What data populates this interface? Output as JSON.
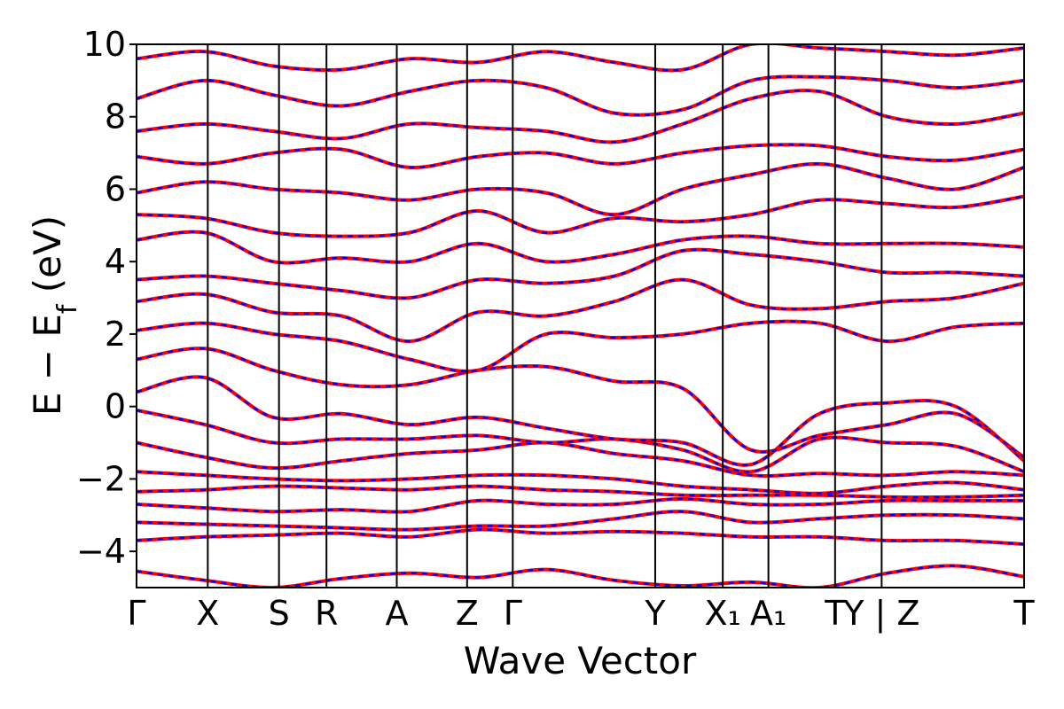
{
  "chart_data": {
    "type": "line",
    "title": "",
    "xlabel": "Wave Vector",
    "ylabel": "E − E_f (eV)",
    "ylabel_main": "E − E",
    "ylabel_sub": "f",
    "ylabel_tail": " (eV)",
    "ylim": [
      -5,
      10
    ],
    "yticks": [
      -4,
      -2,
      0,
      2,
      4,
      6,
      8,
      10
    ],
    "ytick_labels": [
      "−4",
      "−2",
      "0",
      "2",
      "4",
      "6",
      "8",
      "10"
    ],
    "grid": false,
    "legend": "none",
    "kpath": {
      "positions": [
        0,
        0.78,
        1.56,
        2.08,
        2.85,
        3.62,
        4.12,
        5.68,
        6.42,
        6.92,
        7.65,
        8.16,
        9.72
      ],
      "labels": [
        "Γ",
        "X",
        "S",
        "R",
        "A",
        "Z",
        "Γ",
        "Y",
        "X₁",
        "A₁",
        "T",
        "Y | Z",
        "T"
      ]
    },
    "series": [
      {
        "color": "#ff0000",
        "style": "solid",
        "values": [
          [
            -4.55,
            -4.8,
            -5.0,
            -4.75,
            -4.6,
            -4.72,
            -4.5,
            -4.8,
            -4.95,
            -4.85,
            -5.0,
            -4.6,
            -4.4,
            -4.7
          ],
          [
            -3.7,
            -3.6,
            -3.55,
            -3.5,
            -3.6,
            -3.4,
            -3.5,
            -3.45,
            -3.5,
            -3.6,
            -3.6,
            -3.7,
            -3.7,
            -3.8
          ],
          [
            -3.2,
            -3.25,
            -3.3,
            -3.35,
            -3.4,
            -3.3,
            -3.3,
            -3.1,
            -2.9,
            -3.2,
            -3.1,
            -3.0,
            -3.0,
            -3.1
          ],
          [
            -2.7,
            -2.8,
            -2.9,
            -2.85,
            -2.9,
            -2.6,
            -2.7,
            -2.7,
            -2.55,
            -2.7,
            -2.7,
            -2.6,
            -2.6,
            -2.6
          ],
          [
            -2.35,
            -2.3,
            -2.2,
            -2.25,
            -2.3,
            -2.2,
            -2.3,
            -2.35,
            -2.45,
            -2.45,
            -2.45,
            -2.5,
            -2.5,
            -2.45
          ],
          [
            -1.8,
            -1.9,
            -2.0,
            -2.05,
            -2.0,
            -1.9,
            -1.9,
            -2.0,
            -2.2,
            -2.3,
            -2.4,
            -2.2,
            -2.1,
            -2.3
          ],
          [
            -1.0,
            -1.4,
            -1.7,
            -1.5,
            -1.3,
            -1.2,
            -1.0,
            -1.3,
            -1.5,
            -1.9,
            -1.85,
            -1.9,
            -1.8,
            -1.9
          ],
          [
            -0.1,
            -0.5,
            -1.0,
            -0.9,
            -0.9,
            -0.8,
            -1.0,
            -0.9,
            -1.2,
            -1.8,
            -0.9,
            -1.0,
            -1.1,
            -1.8
          ],
          [
            0.4,
            0.8,
            -0.3,
            -0.2,
            -0.5,
            -0.3,
            -0.6,
            -0.9,
            -1.0,
            -1.6,
            -0.2,
            0.1,
            0.0,
            -1.5
          ],
          [
            1.3,
            1.6,
            1.0,
            0.6,
            0.6,
            1.0,
            1.1,
            0.7,
            0.5,
            -1.2,
            -0.8,
            -0.5,
            -0.2,
            -1.4
          ],
          [
            2.1,
            2.3,
            2.0,
            1.8,
            1.3,
            1.0,
            2.0,
            1.9,
            2.0,
            2.3,
            2.3,
            1.8,
            2.2,
            2.3
          ],
          [
            2.9,
            3.1,
            2.6,
            2.5,
            1.8,
            2.6,
            2.5,
            2.9,
            3.5,
            2.8,
            2.7,
            2.9,
            3.0,
            3.4
          ],
          [
            3.5,
            3.6,
            3.4,
            3.2,
            3.0,
            3.5,
            3.4,
            3.6,
            4.3,
            4.2,
            4.0,
            3.7,
            3.7,
            3.6
          ],
          [
            4.6,
            4.8,
            4.0,
            4.1,
            4.0,
            4.5,
            4.0,
            4.2,
            4.6,
            4.7,
            4.5,
            4.5,
            4.5,
            4.4
          ],
          [
            5.3,
            5.2,
            4.8,
            4.7,
            4.8,
            5.4,
            4.8,
            5.2,
            5.1,
            5.3,
            5.7,
            5.6,
            5.5,
            5.8
          ],
          [
            5.9,
            6.2,
            6.0,
            5.9,
            5.7,
            6.0,
            5.9,
            5.3,
            6.0,
            6.4,
            6.7,
            6.3,
            6.0,
            6.6
          ],
          [
            6.9,
            6.7,
            7.0,
            7.1,
            6.6,
            6.9,
            7.0,
            6.7,
            7.0,
            7.2,
            7.2,
            6.9,
            6.8,
            7.1
          ],
          [
            7.6,
            7.8,
            7.6,
            7.4,
            7.8,
            7.7,
            7.6,
            7.3,
            7.8,
            8.5,
            8.7,
            8.0,
            7.8,
            8.1
          ],
          [
            8.5,
            9.0,
            8.6,
            8.3,
            8.7,
            9.0,
            8.8,
            8.1,
            8.2,
            9.0,
            9.1,
            9.0,
            8.8,
            9.0
          ],
          [
            9.6,
            9.8,
            9.4,
            9.3,
            9.6,
            9.5,
            9.8,
            9.5,
            9.3,
            10.0,
            9.9,
            9.8,
            9.7,
            9.9
          ]
        ]
      },
      {
        "color": "#0000ff",
        "style": "dashed",
        "values": "same as solid series"
      }
    ]
  }
}
